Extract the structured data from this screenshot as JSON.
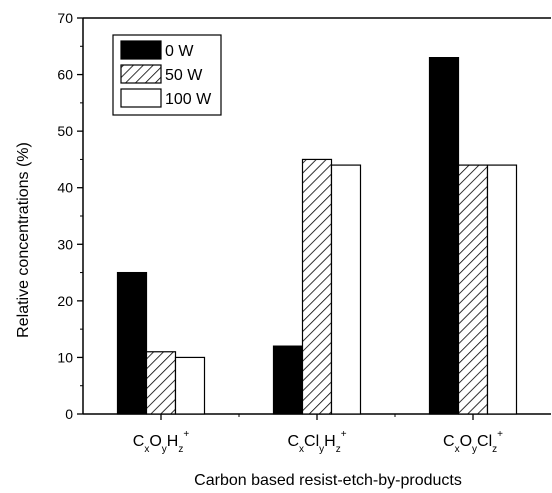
{
  "chart_data": {
    "type": "bar",
    "title": "",
    "xlabel": "Carbon based resist-etch-by-products",
    "ylabel": "Relative concentrations (%)",
    "ylim": [
      0,
      70
    ],
    "yticks": [
      0,
      10,
      20,
      30,
      40,
      50,
      60,
      70
    ],
    "categories": [
      {
        "id": "CxOyHz",
        "parts": [
          {
            "t": "C",
            "sub": "x"
          },
          {
            "t": "O",
            "sub": "y"
          },
          {
            "t": "H",
            "sub": "z"
          },
          {
            "t": "",
            "sup": "+"
          }
        ]
      },
      {
        "id": "CxClyHz",
        "parts": [
          {
            "t": "C",
            "sub": "x"
          },
          {
            "t": "Cl",
            "sub": "y"
          },
          {
            "t": "H",
            "sub": "z"
          },
          {
            "t": "",
            "sup": "+"
          }
        ]
      },
      {
        "id": "CxOyClz",
        "parts": [
          {
            "t": "C",
            "sub": "x"
          },
          {
            "t": "O",
            "sub": "y"
          },
          {
            "t": "Cl",
            "sub": "z"
          },
          {
            "t": "",
            "sup": "+"
          }
        ]
      }
    ],
    "series": [
      {
        "name": "0 W",
        "fill": "solid-black",
        "values": [
          25,
          12,
          63
        ]
      },
      {
        "name": "50 W",
        "fill": "diagonal-hatch",
        "values": [
          11,
          45,
          44
        ]
      },
      {
        "name": "100 W",
        "fill": "white",
        "values": [
          10,
          44,
          44
        ]
      }
    ],
    "legend_position": "top-left",
    "grid": false
  }
}
